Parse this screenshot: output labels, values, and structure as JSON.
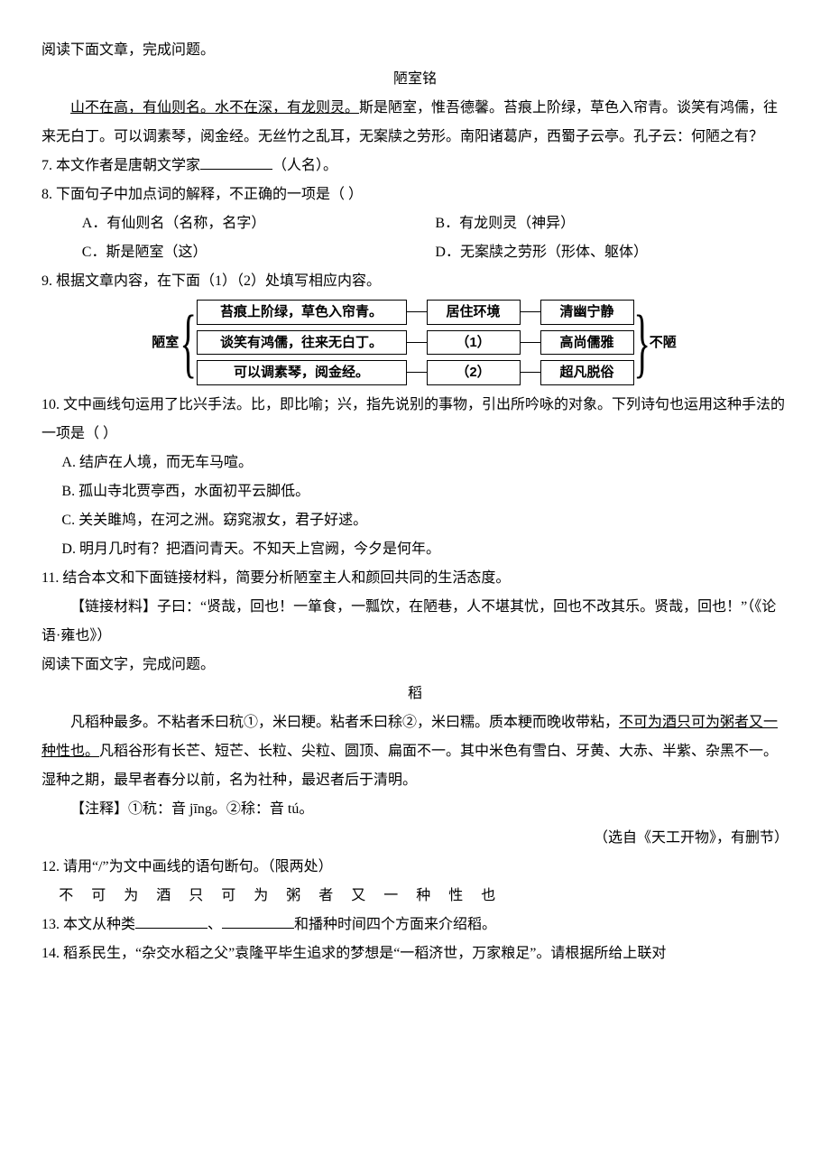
{
  "p1": {
    "intro1": "阅读下面文章，完成问题。",
    "title": "陋室铭",
    "body_seg1_u": "山不在高，有仙则名。水不在深，有龙则灵。",
    "body_seg2": "斯是陋室，惟吾德馨。苔痕上阶绿，草色入帘青。谈笑有鸿儒，往来无白丁。可以调素琴，阅金经。无丝竹之乱耳，无案牍之劳形。南阳诸葛庐，西蜀子云亭。孔子云：何陋之有？",
    "q7_pre": "7.  本文作者是唐朝文学家",
    "q7_post": "（人名）。",
    "q8": "8.  下面句子中加点词的解释，不正确的一项是（      ）",
    "q8A": "A．有仙则名（名称，名字）",
    "q8B": "B．有龙则灵（神异）",
    "q8C": "C．斯是陋室（这）",
    "q8D": "D．无案牍之劳形（形体、躯体）",
    "q9": "9.  根据文章内容，在下面（1）（2）处填写相应内容。",
    "diagram": {
      "left_label": "陋室",
      "rows": [
        {
          "a": "苔痕上阶绿，草色入帘青。",
          "b": "居住环境",
          "c": "清幽宁静"
        },
        {
          "a": "谈笑有鸿儒，往来无白丁。",
          "b": "（1）",
          "c": "高尚儒雅"
        },
        {
          "a": "可以调素琴，阅金经。",
          "b": "（2）",
          "c": "超凡脱俗"
        }
      ],
      "right_label": "不陋"
    },
    "q10a": "10.  文中画线句运用了比兴手法。比，即比喻；兴，指先说别的事物，引出所吟咏的对象。下列诗句也运用这种手法的一项是（      ）",
    "q10A": "A.  结庐在人境，而无车马喧。",
    "q10B": "B.  孤山寺北贾亭西，水面初平云脚低。",
    "q10C": "C.  关关雎鸠，在河之洲。窈窕淑女，君子好逑。",
    "q10D": "D.  明月几时有？把酒问青天。不知天上宫阙，今夕是何年。",
    "q11": "11.  结合本文和下面链接材料，简要分析陋室主人和颜回共同的生活态度。",
    "q11_link": "【链接材料】子曰：“贤哉，回也！一箪食，一瓢饮，在陋巷，人不堪其忧，回也不改其乐。贤哉，回也！”（《论语·雍也》）"
  },
  "p2": {
    "intro": "阅读下面文字，完成问题。",
    "title": "稻",
    "body_pre": "凡稻种最多。不粘者禾曰秔①，米曰粳。粘者禾曰稌②，米曰糯。质本粳而晚收带粘，",
    "body_u": "不可为酒只可为粥者又一种性也。",
    "body_post": "凡稻谷形有长芒、短芒、长粒、尖粒、圆顶、扁面不一。其中米色有雪白、牙黄、大赤、半紫、杂黑不一。湿种之期，最早者春分以前，名为社种，最迟者后于清明。",
    "notes": "【注释】①秔：音 jīng。②稌：音 tú。",
    "source": "（选自《天工开物》，有删节）",
    "q12": "12.  请用“/”为文中画线的语句断句。（限两处）",
    "q12_text": "不 可 为 酒 只 可 为 粥  者 又 一 种 性 也",
    "q13_pre": "13.  本文从种类",
    "q13_mid": "、",
    "q13_post": "和播种时间四个方面来介绍稻。",
    "q14": "14.  稻系民生，“杂交水稻之父”袁隆平毕生追求的梦想是“一稻济世，万家粮足”。请根据所给上联对"
  }
}
